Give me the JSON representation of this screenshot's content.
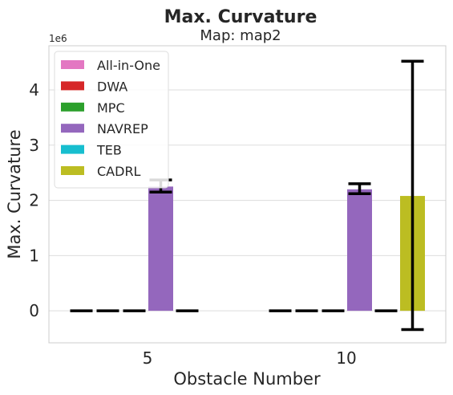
{
  "chart_data": {
    "type": "bar",
    "title": "Max. Curvature",
    "subtitle": "Map: map2",
    "xlabel": "Obstacle Number",
    "ylabel": "Max. Curvature",
    "offset_label": "1e6",
    "categories": [
      "5",
      "10"
    ],
    "yticks": [
      "0",
      "1",
      "2",
      "3",
      "4"
    ],
    "ylim": [
      -0.58,
      4.8
    ],
    "scale": 1000000,
    "grid": true,
    "legend_position": "upper-left",
    "series": [
      {
        "name": "All-in-One",
        "color": "#e377c2",
        "values": [
          0,
          0
        ],
        "err_low": [
          0,
          0
        ],
        "err_high": [
          0,
          0
        ]
      },
      {
        "name": "DWA",
        "color": "#d62728",
        "values": [
          0,
          0
        ],
        "err_low": [
          0,
          0
        ],
        "err_high": [
          0,
          0
        ]
      },
      {
        "name": "MPC",
        "color": "#2ca02c",
        "values": [
          0,
          0
        ],
        "err_low": [
          0,
          0
        ],
        "err_high": [
          0,
          0
        ]
      },
      {
        "name": "NAVREP",
        "color": "#9467bd",
        "values": [
          2.25,
          2.2
        ],
        "err_low": [
          2.15,
          2.12
        ],
        "err_high": [
          2.37,
          2.3
        ]
      },
      {
        "name": "TEB",
        "color": "#17becf",
        "values": [
          0,
          0
        ],
        "err_low": [
          0,
          0
        ],
        "err_high": [
          0,
          0
        ]
      },
      {
        "name": "CADRL",
        "color": "#bcbd22",
        "values": [
          null,
          2.08
        ],
        "err_low": [
          null,
          -0.34
        ],
        "err_high": [
          null,
          4.52
        ]
      }
    ]
  }
}
